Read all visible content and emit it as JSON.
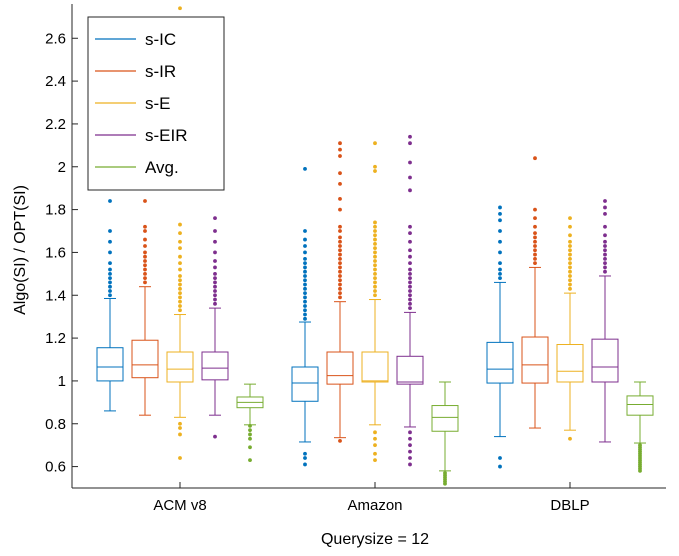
{
  "chart_data": {
    "type": "box",
    "xlabel": "Querysize = 12",
    "ylabel": "Algo(SI) / OPT(SI)",
    "ylim": [
      0.5,
      2.76
    ],
    "yticks": [
      0.6,
      0.8,
      1,
      1.2,
      1.4,
      1.6,
      1.8,
      2,
      2.2,
      2.4,
      2.6
    ],
    "categories": [
      "ACM v8",
      "Amazon",
      "DBLP"
    ],
    "legend_position": "top-left",
    "series": [
      {
        "name": "s-IC",
        "color": "#0072BD",
        "boxes": [
          {
            "q1": 1.0,
            "median": 1.065,
            "q3": 1.155,
            "whisker_low": 0.86,
            "whisker_high": 1.385,
            "outliers": [
              1.4,
              1.42,
              1.44,
              1.46,
              1.48,
              1.5,
              1.52,
              1.55,
              1.6,
              1.65,
              1.7,
              1.84
            ]
          },
          {
            "q1": 0.905,
            "median": 0.99,
            "q3": 1.065,
            "whisker_low": 0.715,
            "whisker_high": 1.275,
            "outliers": [
              0.61,
              0.64,
              0.66,
              1.29,
              1.31,
              1.33,
              1.35,
              1.37,
              1.39,
              1.41,
              1.43,
              1.45,
              1.47,
              1.49,
              1.51,
              1.53,
              1.55,
              1.57,
              1.6,
              1.63,
              1.66,
              1.7,
              1.99
            ]
          },
          {
            "q1": 0.99,
            "median": 1.055,
            "q3": 1.18,
            "whisker_low": 0.74,
            "whisker_high": 1.46,
            "outliers": [
              0.6,
              0.64,
              1.48,
              1.5,
              1.52,
              1.55,
              1.6,
              1.65,
              1.7,
              1.75,
              1.78,
              1.81
            ]
          }
        ]
      },
      {
        "name": "s-IR",
        "color": "#D95319",
        "boxes": [
          {
            "q1": 1.015,
            "median": 1.075,
            "q3": 1.19,
            "whisker_low": 0.84,
            "whisker_high": 1.44,
            "outliers": [
              1.46,
              1.48,
              1.5,
              1.52,
              1.54,
              1.56,
              1.58,
              1.6,
              1.63,
              1.66,
              1.7,
              1.72,
              1.84
            ]
          },
          {
            "q1": 0.985,
            "median": 1.025,
            "q3": 1.135,
            "whisker_low": 0.735,
            "whisker_high": 1.37,
            "outliers": [
              0.72,
              1.39,
              1.41,
              1.43,
              1.45,
              1.47,
              1.49,
              1.51,
              1.53,
              1.55,
              1.57,
              1.59,
              1.61,
              1.63,
              1.65,
              1.67,
              1.7,
              1.72,
              1.8,
              1.85,
              1.92,
              1.97,
              2.05,
              2.08,
              2.11
            ]
          },
          {
            "q1": 0.99,
            "median": 1.075,
            "q3": 1.205,
            "whisker_low": 0.78,
            "whisker_high": 1.53,
            "outliers": [
              1.55,
              1.57,
              1.59,
              1.61,
              1.63,
              1.65,
              1.67,
              1.69,
              1.72,
              1.76,
              1.8,
              2.04
            ]
          }
        ]
      },
      {
        "name": "s-E",
        "color": "#EDB120",
        "boxes": [
          {
            "q1": 0.995,
            "median": 1.055,
            "q3": 1.135,
            "whisker_low": 0.83,
            "whisker_high": 1.31,
            "outliers": [
              0.64,
              0.75,
              0.78,
              0.8,
              1.33,
              1.35,
              1.37,
              1.39,
              1.41,
              1.43,
              1.45,
              1.47,
              1.49,
              1.52,
              1.55,
              1.58,
              1.62,
              1.65,
              1.69,
              1.73,
              2.74
            ]
          },
          {
            "q1": 0.995,
            "median": 1.0,
            "q3": 1.135,
            "whisker_low": 0.795,
            "whisker_high": 1.38,
            "outliers": [
              0.63,
              0.66,
              0.7,
              0.73,
              0.76,
              1.4,
              1.42,
              1.44,
              1.46,
              1.48,
              1.5,
              1.52,
              1.54,
              1.56,
              1.58,
              1.6,
              1.62,
              1.64,
              1.66,
              1.68,
              1.7,
              1.72,
              1.74,
              1.98,
              2.0,
              2.11
            ]
          },
          {
            "q1": 0.995,
            "median": 1.045,
            "q3": 1.17,
            "whisker_low": 0.77,
            "whisker_high": 1.41,
            "outliers": [
              0.73,
              1.43,
              1.45,
              1.47,
              1.49,
              1.51,
              1.53,
              1.55,
              1.57,
              1.59,
              1.61,
              1.63,
              1.65,
              1.68,
              1.72,
              1.76
            ]
          }
        ]
      },
      {
        "name": "s-EIR",
        "color": "#7E2F8E",
        "boxes": [
          {
            "q1": 1.005,
            "median": 1.06,
            "q3": 1.135,
            "whisker_low": 0.84,
            "whisker_high": 1.34,
            "outliers": [
              0.74,
              1.36,
              1.38,
              1.4,
              1.42,
              1.44,
              1.46,
              1.48,
              1.5,
              1.53,
              1.56,
              1.6,
              1.65,
              1.7,
              1.76,
              2.0
            ]
          },
          {
            "q1": 0.985,
            "median": 0.995,
            "q3": 1.115,
            "whisker_low": 0.785,
            "whisker_high": 1.32,
            "outliers": [
              0.61,
              0.64,
              0.67,
              0.7,
              0.73,
              0.76,
              1.34,
              1.36,
              1.38,
              1.4,
              1.42,
              1.44,
              1.46,
              1.48,
              1.5,
              1.52,
              1.55,
              1.58,
              1.61,
              1.65,
              1.69,
              1.72,
              1.89,
              1.95,
              2.02,
              2.11,
              2.14
            ]
          },
          {
            "q1": 0.995,
            "median": 1.065,
            "q3": 1.195,
            "whisker_low": 0.715,
            "whisker_high": 1.49,
            "outliers": [
              1.51,
              1.53,
              1.55,
              1.57,
              1.59,
              1.61,
              1.63,
              1.65,
              1.68,
              1.72,
              1.78,
              1.81,
              1.84
            ]
          }
        ]
      },
      {
        "name": "Avg.",
        "color": "#77AC30",
        "boxes": [
          {
            "q1": 0.875,
            "median": 0.9,
            "q3": 0.925,
            "whisker_low": 0.795,
            "whisker_high": 0.985,
            "outliers": [
              0.63,
              0.69,
              0.73,
              0.75,
              0.77,
              0.79
            ]
          },
          {
            "q1": 0.765,
            "median": 0.83,
            "q3": 0.885,
            "whisker_low": 0.58,
            "whisker_high": 0.995,
            "outliers": [
              0.52,
              0.53,
              0.54,
              0.55,
              0.56,
              0.57
            ]
          },
          {
            "q1": 0.84,
            "median": 0.89,
            "q3": 0.93,
            "whisker_low": 0.71,
            "whisker_high": 0.995,
            "outliers": [
              0.58,
              0.59,
              0.6,
              0.61,
              0.62,
              0.63,
              0.64,
              0.65,
              0.66,
              0.67,
              0.68,
              0.69,
              0.7
            ]
          }
        ]
      }
    ]
  }
}
